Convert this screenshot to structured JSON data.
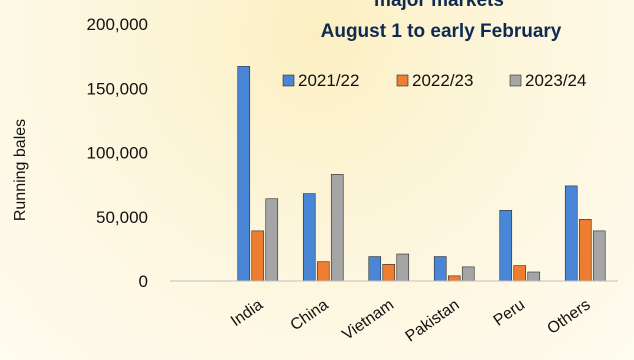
{
  "chart_data": {
    "type": "bar",
    "title_lines": [
      "major markets",
      "August 1 to early February"
    ],
    "ylabel": "Running bales",
    "xlabel": "",
    "ylim": [
      0,
      200000
    ],
    "yticks": [
      0,
      50000,
      100000,
      150000,
      200000
    ],
    "ytick_labels": [
      "0",
      "50,000",
      "100,000",
      "150,000",
      "200,000"
    ],
    "categories": [
      "India",
      "China",
      "Vietnam",
      "Pakistan",
      "Peru",
      "Others"
    ],
    "series": [
      {
        "name": "2021/22",
        "color": "#4a86d6",
        "values": [
          167000,
          68000,
          19000,
          19000,
          55000,
          74000
        ]
      },
      {
        "name": "2022/23",
        "color": "#ed7d31",
        "values": [
          39000,
          15000,
          13000,
          4000,
          12000,
          48000
        ]
      },
      {
        "name": "2023/24",
        "color": "#a5a5a5",
        "values": [
          64000,
          83000,
          21000,
          11000,
          7000,
          39000
        ]
      }
    ],
    "legend_position": "top-right",
    "grid": false
  }
}
